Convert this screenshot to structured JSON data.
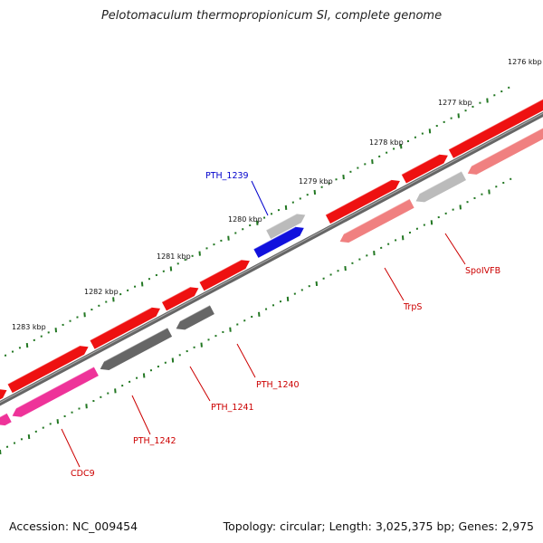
{
  "title": "Pelotomaculum thermopropionicum SI, complete genome",
  "accession": "Accession: NC_009454",
  "summary": "Topology: circular; Length: 3,025,375 bp; Genes: 2,975",
  "colors": {
    "backbone": "#777777",
    "tick": "#227722",
    "red": "#ee1111",
    "pink_light": "#f08080",
    "pink_hot": "#ee3399",
    "gray_light": "#bbbbbb",
    "gray_dark": "#666666",
    "blue": "#1111dd",
    "label_red": "#cc0000",
    "label_blue": "#0000cc"
  },
  "kbp_labels": [
    "1276 kbp",
    "1277 kbp",
    "1278 kbp",
    "1279 kbp",
    "1280 kbp",
    "1281 kbp",
    "1282 kbp",
    "1283 kbp"
  ],
  "gene_labels": {
    "pth1239": "PTH_1239",
    "trps": "TrpS",
    "spoivfb": "SpoIVFB",
    "pth1240": "PTH_1240",
    "pth1241": "PTH_1241",
    "pth1242": "PTH_1242",
    "cdc9": "CDC9"
  }
}
